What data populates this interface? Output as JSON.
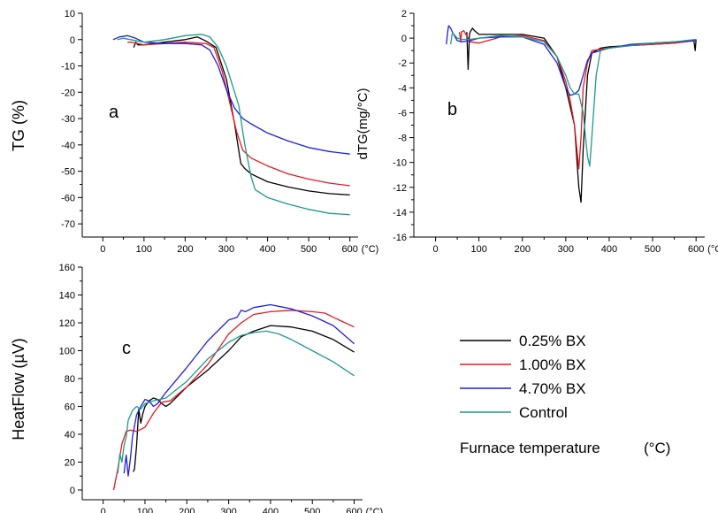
{
  "figure": {
    "footer_label": "Furnace temperature",
    "footer_unit": "(°C)"
  },
  "legend": {
    "entries": [
      {
        "label": "0.25% BX",
        "color": "#000000"
      },
      {
        "label": "1.00% BX",
        "color": "#e8191f"
      },
      {
        "label": "4.70% BX",
        "color": "#1f1fe6"
      },
      {
        "label": "Control",
        "color": "#1e9a8e"
      }
    ]
  },
  "chart_data": [
    {
      "type": "line",
      "panel_label": "a",
      "title": "",
      "xlabel": "",
      "x_unit": "(°C)",
      "ylabel": "TG (%)",
      "xlim": [
        -50,
        620
      ],
      "ylim": [
        -75,
        10
      ],
      "xticks": [
        0,
        100,
        200,
        300,
        400,
        500,
        600
      ],
      "xtick_labels": [
        "0",
        "100",
        "200",
        "300",
        "400",
        "500",
        "600"
      ],
      "yticks": [
        10,
        0,
        -10,
        -20,
        -30,
        -40,
        -50,
        -60,
        -70
      ],
      "ytick_labels": [
        "10",
        "0",
        "-10",
        "-20",
        "-30",
        "-40",
        "-50",
        "-60",
        "-70"
      ],
      "grid": false,
      "series": [
        {
          "name": "0.25% BX",
          "color": "#000000",
          "x": [
            75,
            80,
            85,
            100,
            150,
            200,
            230,
            250,
            275,
            300,
            320,
            335,
            345,
            360,
            400,
            450,
            500,
            550,
            600
          ],
          "y": [
            -3,
            -1,
            -2,
            -2,
            -1,
            0,
            1,
            -0.5,
            -3,
            -15,
            -32,
            -47,
            -49,
            -51,
            -54,
            -56,
            -57.5,
            -58.5,
            -59
          ]
        },
        {
          "name": "1.00% BX",
          "color": "#e8191f",
          "x": [
            60,
            70,
            100,
            150,
            200,
            250,
            270,
            290,
            310,
            325,
            340,
            360,
            400,
            450,
            500,
            550,
            600
          ],
          "y": [
            -1,
            -1,
            -2,
            -1.5,
            -1,
            -1.5,
            -3,
            -12,
            -25,
            -35,
            -42,
            -45,
            -48,
            -51,
            -53,
            -54.5,
            -55.5
          ]
        },
        {
          "name": "4.70% BX",
          "color": "#1f1fe6",
          "x": [
            25,
            40,
            60,
            80,
            100,
            150,
            200,
            240,
            260,
            280,
            300,
            320,
            340,
            360,
            400,
            450,
            500,
            550,
            600
          ],
          "y": [
            0,
            1,
            1.5,
            0.5,
            -1,
            -1.5,
            -1.5,
            -2,
            -4,
            -10,
            -19,
            -26,
            -30,
            -32,
            -35.5,
            -38.5,
            -41,
            -42.5,
            -43.5
          ]
        },
        {
          "name": "Control",
          "color": "#1e9a8e",
          "x": [
            35,
            50,
            100,
            150,
            200,
            240,
            260,
            280,
            300,
            330,
            345,
            360,
            370,
            400,
            450,
            500,
            550,
            600
          ],
          "y": [
            0,
            0.5,
            -1,
            0,
            1.5,
            2,
            1,
            -3,
            -10,
            -25,
            -40,
            -52,
            -57,
            -60,
            -62.5,
            -64.5,
            -66,
            -66.5
          ]
        }
      ]
    },
    {
      "type": "line",
      "panel_label": "b",
      "title": "",
      "xlabel": "",
      "x_unit": "(°C)",
      "ylabel": "dTG(mg/°C)",
      "xlim": [
        -50,
        620
      ],
      "ylim": [
        -16,
        2
      ],
      "xticks": [
        0,
        100,
        200,
        300,
        400,
        500,
        600
      ],
      "xtick_labels": [
        "0",
        "100",
        "200",
        "300",
        "400",
        "500",
        "600"
      ],
      "yticks": [
        2,
        0,
        -2,
        -4,
        -6,
        -8,
        -10,
        -12,
        -14,
        -16
      ],
      "ytick_labels": [
        "2",
        "0",
        "-2",
        "-4",
        "-6",
        "-8",
        "-10",
        "-12",
        "-14",
        "-16"
      ],
      "grid": false,
      "series": [
        {
          "name": "0.25% BX",
          "color": "#000000",
          "x": [
            72,
            75,
            78,
            80,
            85,
            90,
            100,
            150,
            200,
            250,
            280,
            300,
            310,
            320,
            330,
            335,
            340,
            350,
            360,
            380,
            400,
            450,
            500,
            550,
            595,
            598,
            600
          ],
          "y": [
            0.5,
            -2.5,
            0.3,
            0.5,
            0.8,
            0.6,
            0.3,
            0.3,
            0.3,
            0,
            -1.5,
            -4,
            -5.5,
            -7,
            -12,
            -13.2,
            -9,
            -3,
            -1.2,
            -0.8,
            -0.7,
            -0.6,
            -0.5,
            -0.4,
            -0.2,
            -1,
            -0.1
          ]
        },
        {
          "name": "1.00% BX",
          "color": "#e8191f",
          "x": [
            55,
            58,
            60,
            65,
            70,
            80,
            100,
            150,
            200,
            250,
            280,
            300,
            310,
            320,
            330,
            335,
            340,
            350,
            360,
            400,
            450,
            500,
            550,
            600
          ],
          "y": [
            0.5,
            -0.3,
            0.5,
            0.6,
            0.3,
            -0.3,
            -0.4,
            0.1,
            0.2,
            -0.2,
            -1.5,
            -3.5,
            -5,
            -7,
            -10.5,
            -8,
            -4,
            -2,
            -1,
            -0.8,
            -0.6,
            -0.5,
            -0.4,
            -0.2
          ]
        },
        {
          "name": "4.70% BX",
          "color": "#1f1fe6",
          "x": [
            25,
            28,
            30,
            35,
            40,
            50,
            60,
            80,
            100,
            150,
            200,
            250,
            280,
            300,
            310,
            320,
            330,
            340,
            350,
            360,
            400,
            450,
            500,
            550,
            600
          ],
          "y": [
            -0.5,
            0.5,
            1,
            0.8,
            0.4,
            -0.2,
            -0.3,
            -0.2,
            0,
            0.1,
            0.1,
            -0.5,
            -2,
            -4,
            -4.6,
            -4.5,
            -4.2,
            -3,
            -1.8,
            -1.2,
            -0.8,
            -0.5,
            -0.4,
            -0.3,
            -0.2
          ]
        },
        {
          "name": "Control",
          "color": "#1e9a8e",
          "x": [
            35,
            38,
            40,
            45,
            50,
            60,
            80,
            100,
            150,
            200,
            250,
            280,
            300,
            310,
            320,
            330,
            340,
            350,
            355,
            360,
            370,
            380,
            400,
            450,
            500,
            550,
            600
          ],
          "y": [
            -0.5,
            0.3,
            0.4,
            0.2,
            0,
            -0.1,
            -0.1,
            0,
            0.2,
            0.1,
            -0.3,
            -1.5,
            -3,
            -4,
            -4.5,
            -4.5,
            -6,
            -9.5,
            -10.3,
            -8,
            -3,
            -1,
            -0.8,
            -0.6,
            -0.4,
            -0.3,
            -0.1
          ]
        }
      ]
    },
    {
      "type": "line",
      "panel_label": "c",
      "title": "",
      "xlabel": "",
      "x_unit": "(°C)",
      "ylabel": "HeatFlow (µV)",
      "xlim": [
        -50,
        620
      ],
      "ylim": [
        -7,
        160
      ],
      "xticks": [
        0,
        100,
        200,
        300,
        400,
        500,
        600
      ],
      "xtick_labels": [
        "0",
        "100",
        "200",
        "300",
        "400",
        "500",
        "600"
      ],
      "yticks": [
        160,
        140,
        120,
        100,
        80,
        60,
        40,
        20,
        0
      ],
      "ytick_labels": [
        "160",
        "140",
        "120",
        "100",
        "80",
        "60",
        "40",
        "20",
        "0"
      ],
      "grid": false,
      "series": [
        {
          "name": "0.25% BX",
          "color": "#000000",
          "x": [
            72,
            75,
            80,
            85,
            90,
            95,
            100,
            110,
            120,
            130,
            140,
            150,
            160,
            180,
            200,
            250,
            300,
            330,
            360,
            400,
            450,
            500,
            550,
            600
          ],
          "y": [
            13,
            15,
            32,
            58,
            48,
            55,
            60,
            64,
            66,
            65,
            62,
            60,
            62,
            68,
            74,
            86,
            100,
            110,
            114,
            118,
            117,
            114,
            108,
            99
          ]
        },
        {
          "name": "1.00% BX",
          "color": "#e8191f",
          "x": [
            25,
            35,
            45,
            55,
            65,
            80,
            100,
            120,
            140,
            160,
            200,
            250,
            300,
            330,
            360,
            400,
            450,
            500,
            530,
            550,
            600
          ],
          "y": [
            0,
            15,
            33,
            42,
            43,
            42,
            45,
            55,
            63,
            64,
            74,
            90,
            112,
            120,
            126,
            128,
            129,
            128,
            127,
            124,
            117
          ]
        },
        {
          "name": "4.70% BX",
          "color": "#1f1fe6",
          "x": [
            50,
            55,
            60,
            65,
            70,
            80,
            90,
            100,
            110,
            120,
            130,
            150,
            200,
            250,
            300,
            320,
            330,
            340,
            360,
            400,
            450,
            500,
            550,
            600
          ],
          "y": [
            12,
            25,
            10,
            22,
            38,
            54,
            60,
            65,
            64,
            60,
            62,
            70,
            88,
            107,
            122,
            124,
            129,
            128,
            131,
            133,
            130,
            125,
            118,
            105
          ]
        },
        {
          "name": "Control",
          "color": "#1e9a8e",
          "x": [
            35,
            40,
            45,
            50,
            55,
            60,
            70,
            80,
            90,
            100,
            120,
            150,
            200,
            250,
            300,
            330,
            360,
            390,
            420,
            450,
            500,
            550,
            600
          ],
          "y": [
            12,
            26,
            20,
            32,
            38,
            50,
            57,
            60,
            58,
            62,
            64,
            66,
            78,
            94,
            106,
            111,
            113,
            114,
            112,
            108,
            100,
            92,
            82
          ]
        }
      ]
    }
  ]
}
